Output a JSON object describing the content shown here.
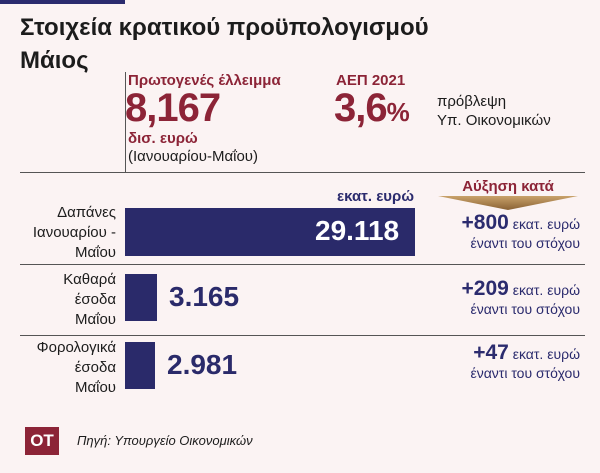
{
  "title": "Στοιχεία κρατικού προϋπολογισμού",
  "subtitle": "Μάιος",
  "kpi_deficit": {
    "label": "Πρωτογενές έλλειμμα",
    "value": "8,167",
    "unit": "δισ. ευρώ",
    "period": "(Ιανουαρίου-Μαΐου)"
  },
  "kpi_gdp": {
    "label": "ΑΕΠ 2021",
    "value": "3,6",
    "pct": "%",
    "note_line1": "πρόβλεψη",
    "note_line2": "Υπ. Οικονομικών"
  },
  "chart_data": {
    "type": "bar",
    "orientation": "horizontal",
    "unit_label": "εκατ. ευρώ",
    "increase_header": "Αύξηση κατά",
    "categories": [
      [
        "Δαπάνες",
        "Ιανουαρίου -",
        "Μαΐου"
      ],
      [
        "Καθαρά",
        "έσοδα",
        "Μαΐου"
      ],
      [
        "Φορολογικά",
        "έσοδα",
        "Μαΐου"
      ]
    ],
    "values": [
      29118,
      3165,
      2981
    ],
    "value_labels": [
      "29.118",
      "3.165",
      "2.981"
    ],
    "increases": [
      {
        "amount": "+800",
        "unit": "εκατ. ευρώ",
        "note": "έναντι του στόχου"
      },
      {
        "amount": "+209",
        "unit": "εκατ. ευρώ",
        "note": "έναντι του στόχου"
      },
      {
        "amount": "+47",
        "unit": "εκατ. ευρώ",
        "note": "έναντι του στόχου"
      }
    ]
  },
  "colors": {
    "accent": "#8c2437",
    "bar": "#2a2a6a",
    "background": "#fbf3f3"
  },
  "logo": "OT",
  "source": "Πηγή: Υπουργείο Οικονομικών"
}
